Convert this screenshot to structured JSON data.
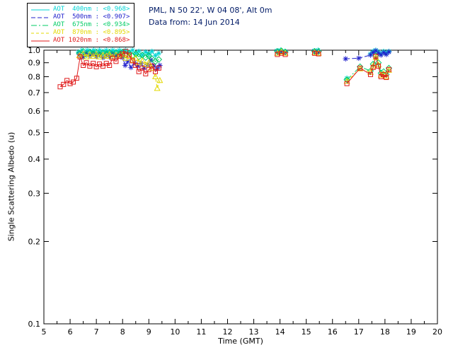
{
  "header": {
    "line1": "PML, N 50 22', W 04 08', Alt 0m",
    "line2": "Data from: 14 Jun 2014",
    "color": "#001A66"
  },
  "chart_data": {
    "type": "line",
    "title": "",
    "xlabel": "Time (GMT)",
    "ylabel": "Single Scattering Albedo (u)",
    "xlim": [
      5,
      20
    ],
    "ylim": [
      0.1,
      1.0
    ],
    "yscale": "log",
    "xticks": [
      5,
      6,
      7,
      8,
      9,
      10,
      11,
      12,
      13,
      14,
      15,
      16,
      17,
      18,
      19,
      20
    ],
    "yticks": [
      1.0,
      0.9,
      0.8,
      0.7,
      0.6,
      0.5,
      0.4,
      0.3,
      0.2,
      0.1
    ],
    "axis_color": "#000000",
    "background": "#ffffff",
    "legend_position": "top-left",
    "series": [
      {
        "name": "AOT 400nm",
        "legend_label": "AOT  400nm : <0.968>",
        "mean": 0.968,
        "color": "#00D4D4",
        "marker": "asterisk",
        "dash": "",
        "points": [
          [
            6.32,
            0.985
          ],
          [
            6.45,
            1.0
          ],
          [
            6.55,
            0.97
          ],
          [
            6.65,
            1.0
          ],
          [
            6.78,
            0.99
          ],
          [
            6.9,
            1.0
          ],
          [
            7.0,
            0.98
          ],
          [
            7.12,
            1.0
          ],
          [
            7.25,
            0.99
          ],
          [
            7.38,
            1.0
          ],
          [
            7.5,
            0.985
          ],
          [
            7.62,
            1.0
          ],
          [
            7.75,
            0.99
          ],
          [
            7.88,
            1.0
          ],
          [
            8.0,
            0.99
          ],
          [
            8.12,
            1.0
          ],
          [
            8.25,
            0.98
          ],
          [
            8.38,
            1.0
          ],
          [
            8.5,
            0.97
          ],
          [
            8.62,
            0.99
          ],
          [
            8.75,
            0.96
          ],
          [
            8.88,
            0.985
          ],
          [
            9.0,
            0.97
          ],
          [
            9.12,
            0.99
          ],
          [
            9.25,
            0.955
          ],
          [
            9.38,
            0.975
          ],
          [
            13.88,
            0.995
          ],
          [
            14.02,
            1.0
          ],
          [
            14.18,
            0.99
          ],
          [
            15.3,
            0.995
          ],
          [
            15.45,
            1.0
          ],
          [
            16.55,
            0.79
          ],
          [
            17.45,
            0.97
          ],
          [
            17.55,
            0.99
          ],
          [
            17.65,
            1.0
          ],
          [
            17.75,
            0.985
          ],
          [
            17.85,
            0.97
          ],
          [
            17.95,
            0.99
          ],
          [
            18.05,
            0.975
          ],
          [
            18.15,
            0.99
          ]
        ]
      },
      {
        "name": "AOT 500nm",
        "legend_label": "AOT  500nm : <0.907>",
        "mean": 0.907,
        "color": "#2222CC",
        "marker": "asterisk",
        "dash": "6,3",
        "points": [
          [
            6.35,
            0.965
          ],
          [
            6.5,
            0.945
          ],
          [
            6.62,
            0.975
          ],
          [
            6.75,
            0.955
          ],
          [
            6.88,
            0.97
          ],
          [
            7.0,
            0.95
          ],
          [
            7.12,
            0.965
          ],
          [
            7.25,
            0.94
          ],
          [
            7.38,
            0.96
          ],
          [
            7.5,
            0.945
          ],
          [
            7.62,
            0.97
          ],
          [
            7.75,
            0.95
          ],
          [
            7.88,
            0.965
          ],
          [
            8.0,
            0.94
          ],
          [
            8.1,
            0.88
          ],
          [
            8.2,
            0.91
          ],
          [
            8.32,
            0.865
          ],
          [
            8.45,
            0.9
          ],
          [
            8.58,
            0.875
          ],
          [
            8.7,
            0.895
          ],
          [
            8.82,
            0.86
          ],
          [
            8.95,
            0.885
          ],
          [
            9.08,
            0.92
          ],
          [
            9.2,
            0.875
          ],
          [
            9.32,
            0.855
          ],
          [
            9.42,
            0.88
          ],
          [
            13.9,
            0.985
          ],
          [
            14.05,
            0.99
          ],
          [
            14.2,
            0.985
          ],
          [
            15.32,
            0.99
          ],
          [
            15.47,
            0.985
          ],
          [
            16.5,
            0.93
          ],
          [
            17.0,
            0.935
          ],
          [
            17.45,
            0.96
          ],
          [
            17.55,
            0.98
          ],
          [
            17.65,
            0.995
          ],
          [
            17.75,
            0.975
          ],
          [
            17.85,
            0.96
          ],
          [
            17.95,
            0.98
          ],
          [
            18.05,
            0.965
          ],
          [
            18.15,
            0.985
          ]
        ]
      },
      {
        "name": "AOT 675nm",
        "legend_label": "AOT  675nm : <0.934>",
        "mean": 0.934,
        "color": "#00CC66",
        "marker": "diamond",
        "dash": "8,3,2,3",
        "points": [
          [
            6.35,
            0.975
          ],
          [
            6.5,
            0.99
          ],
          [
            6.62,
            0.965
          ],
          [
            6.75,
            0.985
          ],
          [
            6.88,
            0.97
          ],
          [
            7.0,
            0.985
          ],
          [
            7.12,
            0.965
          ],
          [
            7.25,
            0.98
          ],
          [
            7.38,
            0.97
          ],
          [
            7.5,
            0.985
          ],
          [
            7.62,
            0.965
          ],
          [
            7.75,
            0.98
          ],
          [
            7.88,
            0.97
          ],
          [
            8.0,
            0.985
          ],
          [
            8.12,
            0.96
          ],
          [
            8.25,
            0.975
          ],
          [
            8.38,
            0.955
          ],
          [
            8.5,
            0.97
          ],
          [
            8.62,
            0.945
          ],
          [
            8.75,
            0.96
          ],
          [
            8.88,
            0.94
          ],
          [
            9.0,
            0.955
          ],
          [
            9.12,
            0.93
          ],
          [
            9.25,
            0.91
          ],
          [
            9.38,
            0.925
          ],
          [
            13.9,
            0.99
          ],
          [
            14.05,
            0.995
          ],
          [
            14.2,
            0.985
          ],
          [
            15.32,
            0.99
          ],
          [
            15.47,
            0.99
          ],
          [
            16.55,
            0.78
          ],
          [
            17.05,
            0.87
          ],
          [
            17.45,
            0.84
          ],
          [
            17.55,
            0.89
          ],
          [
            17.65,
            0.955
          ],
          [
            17.75,
            0.9
          ],
          [
            17.85,
            0.825
          ],
          [
            17.95,
            0.835
          ],
          [
            18.05,
            0.815
          ],
          [
            18.15,
            0.86
          ]
        ]
      },
      {
        "name": "AOT 870nm",
        "legend_label": "AOT  870nm : <0.895>",
        "mean": 0.895,
        "color": "#E3D800",
        "marker": "triangle",
        "dash": "4,3",
        "points": [
          [
            6.35,
            0.955
          ],
          [
            6.5,
            0.97
          ],
          [
            6.62,
            0.945
          ],
          [
            6.75,
            0.965
          ],
          [
            6.88,
            0.95
          ],
          [
            7.0,
            0.965
          ],
          [
            7.12,
            0.945
          ],
          [
            7.25,
            0.96
          ],
          [
            7.38,
            0.95
          ],
          [
            7.5,
            0.965
          ],
          [
            7.62,
            0.945
          ],
          [
            7.75,
            0.96
          ],
          [
            7.88,
            0.95
          ],
          [
            8.0,
            0.96
          ],
          [
            8.12,
            0.935
          ],
          [
            8.25,
            0.95
          ],
          [
            8.38,
            0.92
          ],
          [
            8.5,
            0.935
          ],
          [
            8.62,
            0.9
          ],
          [
            8.75,
            0.915
          ],
          [
            8.88,
            0.885
          ],
          [
            9.0,
            0.9
          ],
          [
            9.12,
            0.86
          ],
          [
            9.25,
            0.8
          ],
          [
            9.32,
            0.725
          ],
          [
            9.42,
            0.775
          ],
          [
            13.9,
            0.975
          ],
          [
            14.05,
            0.985
          ],
          [
            14.2,
            0.975
          ],
          [
            15.32,
            0.98
          ],
          [
            15.47,
            0.975
          ],
          [
            16.55,
            0.77
          ],
          [
            17.05,
            0.855
          ],
          [
            17.45,
            0.83
          ],
          [
            17.55,
            0.875
          ],
          [
            17.65,
            0.94
          ],
          [
            17.75,
            0.885
          ],
          [
            17.85,
            0.81
          ],
          [
            17.95,
            0.82
          ],
          [
            18.05,
            0.8
          ],
          [
            18.15,
            0.845
          ]
        ]
      },
      {
        "name": "AOT 1020nm",
        "legend_label": "AOT 1020nm : <0.868>",
        "mean": 0.868,
        "color": "#E01B1B",
        "marker": "square",
        "dash": "",
        "points": [
          [
            5.62,
            0.735
          ],
          [
            5.75,
            0.75
          ],
          [
            5.88,
            0.775
          ],
          [
            6.0,
            0.755
          ],
          [
            6.12,
            0.765
          ],
          [
            6.25,
            0.79
          ],
          [
            6.38,
            0.945
          ],
          [
            6.5,
            0.88
          ],
          [
            6.62,
            0.9
          ],
          [
            6.75,
            0.875
          ],
          [
            6.88,
            0.895
          ],
          [
            7.0,
            0.87
          ],
          [
            7.12,
            0.89
          ],
          [
            7.25,
            0.875
          ],
          [
            7.38,
            0.895
          ],
          [
            7.5,
            0.88
          ],
          [
            7.62,
            0.935
          ],
          [
            7.75,
            0.91
          ],
          [
            7.88,
            0.95
          ],
          [
            8.0,
            0.97
          ],
          [
            8.12,
            0.99
          ],
          [
            8.25,
            0.96
          ],
          [
            8.38,
            0.915
          ],
          [
            8.5,
            0.88
          ],
          [
            8.62,
            0.835
          ],
          [
            8.75,
            0.86
          ],
          [
            8.88,
            0.82
          ],
          [
            9.0,
            0.85
          ],
          [
            9.12,
            0.875
          ],
          [
            9.25,
            0.835
          ],
          [
            9.38,
            0.86
          ],
          [
            13.9,
            0.965
          ],
          [
            14.05,
            0.975
          ],
          [
            14.2,
            0.965
          ],
          [
            15.32,
            0.975
          ],
          [
            15.47,
            0.97
          ],
          [
            16.55,
            0.755
          ],
          [
            17.05,
            0.86
          ],
          [
            17.45,
            0.815
          ],
          [
            17.55,
            0.865
          ],
          [
            17.65,
            0.95
          ],
          [
            17.75,
            0.875
          ],
          [
            17.85,
            0.8
          ],
          [
            17.95,
            0.815
          ],
          [
            18.05,
            0.795
          ],
          [
            18.15,
            0.85
          ]
        ]
      }
    ]
  }
}
